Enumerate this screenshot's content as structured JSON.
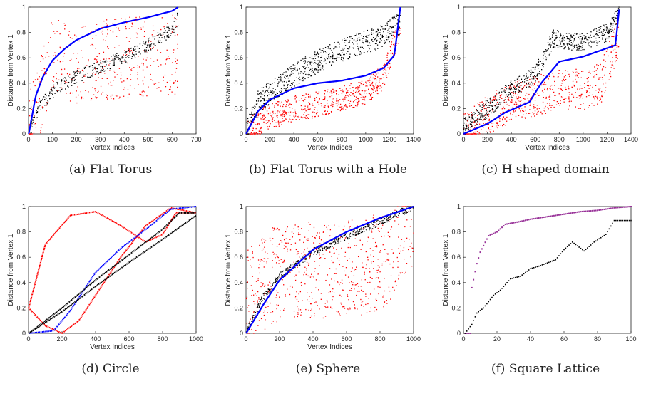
{
  "chart_data": [
    {
      "type": "scatter",
      "caption": "(a) Flat Torus",
      "xlabel": "Vertex Indices",
      "ylabel": "Distance from Vertex 1",
      "xlim": [
        0,
        700
      ],
      "ylim": [
        0,
        1
      ],
      "xticks": [
        0,
        100,
        200,
        300,
        400,
        500,
        600,
        700
      ],
      "yticks": [
        0,
        0.2,
        0.4,
        0.6,
        0.8,
        1
      ],
      "n": 625,
      "series": [
        {
          "color": "#0000ff",
          "style": "line",
          "points": [
            [
              1,
              0
            ],
            [
              30,
              0.3
            ],
            [
              60,
              0.45
            ],
            [
              100,
              0.58
            ],
            [
              150,
              0.67
            ],
            [
              200,
              0.74
            ],
            [
              300,
              0.83
            ],
            [
              400,
              0.88
            ],
            [
              500,
              0.92
            ],
            [
              600,
              0.97
            ],
            [
              625,
              1.0
            ]
          ]
        },
        {
          "color": "#000000",
          "style": "scatter",
          "points": [
            [
              1,
              0
            ],
            [
              50,
              0.22
            ],
            [
              100,
              0.33
            ],
            [
              150,
              0.4
            ],
            [
              200,
              0.45
            ],
            [
              300,
              0.53
            ],
            [
              400,
              0.61
            ],
            [
              500,
              0.7
            ],
            [
              600,
              0.82
            ],
            [
              625,
              0.92
            ]
          ],
          "spread": 0.05,
          "count": 380
        },
        {
          "color": "#ff0000",
          "style": "scatter",
          "points": [
            [
              1,
              0
            ],
            [
              100,
              0.6
            ],
            [
              200,
              0.55
            ],
            [
              300,
              0.58
            ],
            [
              400,
              0.6
            ],
            [
              500,
              0.62
            ],
            [
              625,
              0.62
            ]
          ],
          "spread": 0.32,
          "count": 430
        }
      ]
    },
    {
      "type": "scatter",
      "caption": "(b) Flat Torus with a Hole",
      "xlabel": "Vertex Indices",
      "ylabel": "Distance from Vertex 1",
      "xlim": [
        0,
        1400
      ],
      "ylim": [
        0,
        1
      ],
      "xticks": [
        0,
        200,
        400,
        600,
        800,
        1000,
        1200,
        1400
      ],
      "yticks": [
        0,
        0.2,
        0.4,
        0.6,
        0.8,
        1
      ],
      "n": 1290,
      "series": [
        {
          "color": "#ff0000",
          "style": "scatter",
          "points": [
            [
              1,
              0
            ],
            [
              150,
              0.12
            ],
            [
              400,
              0.2
            ],
            [
              700,
              0.25
            ],
            [
              1000,
              0.33
            ],
            [
              1150,
              0.45
            ],
            [
              1290,
              0.85
            ]
          ],
          "spread": 0.1,
          "count": 650
        },
        {
          "color": "#000000",
          "style": "scatter",
          "points": [
            [
              1,
              0
            ],
            [
              100,
              0.25
            ],
            [
              300,
              0.4
            ],
            [
              500,
              0.52
            ],
            [
              700,
              0.62
            ],
            [
              900,
              0.7
            ],
            [
              1100,
              0.75
            ],
            [
              1250,
              0.85
            ]
          ],
          "spread": 0.09,
          "count": 650
        },
        {
          "color": "#0000ff",
          "style": "line",
          "points": [
            [
              1,
              0
            ],
            [
              100,
              0.18
            ],
            [
              200,
              0.27
            ],
            [
              400,
              0.36
            ],
            [
              600,
              0.4
            ],
            [
              800,
              0.42
            ],
            [
              1000,
              0.46
            ],
            [
              1150,
              0.52
            ],
            [
              1240,
              0.62
            ],
            [
              1290,
              1.0
            ]
          ]
        }
      ]
    },
    {
      "type": "scatter",
      "caption": "(c) H shaped domain",
      "xlabel": "Vertex Indices",
      "ylabel": "Distance from Vertex 1",
      "xlim": [
        0,
        1400
      ],
      "ylim": [
        0,
        1
      ],
      "xticks": [
        0,
        200,
        400,
        600,
        800,
        1000,
        1200,
        1400
      ],
      "yticks": [
        0,
        0.2,
        0.4,
        0.6,
        0.8,
        1
      ],
      "n": 1300,
      "series": [
        {
          "color": "#ff0000",
          "style": "scatter",
          "points": [
            [
              1,
              0
            ],
            [
              200,
              0.15
            ],
            [
              400,
              0.25
            ],
            [
              600,
              0.3
            ],
            [
              800,
              0.35
            ],
            [
              1000,
              0.35
            ],
            [
              1150,
              0.4
            ],
            [
              1300,
              0.78
            ]
          ],
          "spread": 0.16,
          "count": 650
        },
        {
          "color": "#000000",
          "style": "scatter",
          "points": [
            [
              1,
              0.05
            ],
            [
              200,
              0.2
            ],
            [
              400,
              0.35
            ],
            [
              600,
              0.47
            ],
            [
              750,
              0.75
            ],
            [
              1000,
              0.72
            ],
            [
              1200,
              0.8
            ],
            [
              1300,
              0.95
            ]
          ],
          "spread": 0.07,
          "count": 650
        },
        {
          "color": "#0000ff",
          "style": "line",
          "points": [
            [
              1,
              0
            ],
            [
              200,
              0.08
            ],
            [
              350,
              0.17
            ],
            [
              550,
              0.25
            ],
            [
              650,
              0.4
            ],
            [
              800,
              0.57
            ],
            [
              1000,
              0.61
            ],
            [
              1150,
              0.66
            ],
            [
              1270,
              0.7
            ],
            [
              1300,
              0.98
            ]
          ]
        }
      ]
    },
    {
      "type": "scatter",
      "caption": "(d) Circle",
      "xlabel": "Vertex Indices",
      "ylabel": "Distance from Vertex 1",
      "xlim": [
        0,
        1000
      ],
      "ylim": [
        0,
        1
      ],
      "xticks": [
        0,
        200,
        400,
        600,
        800,
        1000
      ],
      "yticks": [
        0,
        0.2,
        0.4,
        0.6,
        0.8,
        1
      ],
      "n": 1000,
      "series": [
        {
          "color": "#ff0000",
          "style": "curve",
          "points": [
            [
              1,
              0.2
            ],
            [
              100,
              0.7
            ],
            [
              250,
              0.93
            ],
            [
              400,
              0.96
            ],
            [
              550,
              0.85
            ],
            [
              700,
              0.72
            ],
            [
              800,
              0.78
            ],
            [
              880,
              0.95
            ],
            [
              1000,
              0.95
            ]
          ]
        },
        {
          "color": "#ff0000",
          "style": "curve",
          "points": [
            [
              1,
              0.2
            ],
            [
              100,
              0.06
            ],
            [
              200,
              0.0
            ],
            [
              300,
              0.1
            ],
            [
              400,
              0.3
            ],
            [
              550,
              0.6
            ],
            [
              700,
              0.85
            ],
            [
              850,
              0.99
            ],
            [
              1000,
              0.95
            ]
          ]
        },
        {
          "color": "#0000ff",
          "style": "curve",
          "points": [
            [
              1,
              0
            ],
            [
              150,
              0.02
            ],
            [
              250,
              0.18
            ],
            [
              400,
              0.48
            ],
            [
              550,
              0.67
            ],
            [
              700,
              0.82
            ],
            [
              850,
              0.98
            ],
            [
              1000,
              1.0
            ]
          ]
        },
        {
          "color": "#000000",
          "style": "curve",
          "points": [
            [
              1,
              0
            ],
            [
              200,
              0.17
            ],
            [
              400,
              0.37
            ],
            [
              600,
              0.56
            ],
            [
              800,
              0.74
            ],
            [
              1000,
              0.93
            ]
          ]
        },
        {
          "color": "#000000",
          "style": "curve",
          "points": [
            [
              1,
              0
            ],
            [
              200,
              0.2
            ],
            [
              400,
              0.42
            ],
            [
              600,
              0.62
            ],
            [
              800,
              0.82
            ],
            [
              900,
              0.95
            ],
            [
              1000,
              0.95
            ]
          ]
        }
      ]
    },
    {
      "type": "scatter",
      "caption": "(e) Sphere",
      "xlabel": "Vertex Indices",
      "ylabel": "Distance from Vertex 1",
      "xlim": [
        0,
        1000
      ],
      "ylim": [
        0,
        1
      ],
      "xticks": [
        0,
        200,
        400,
        600,
        800,
        1000
      ],
      "yticks": [
        0,
        0.2,
        0.4,
        0.6,
        0.8,
        1
      ],
      "n": 1000,
      "series": [
        {
          "color": "#ff0000",
          "style": "scatter",
          "points": [
            [
              1,
              0.3
            ],
            [
              150,
              0.45
            ],
            [
              300,
              0.5
            ],
            [
              500,
              0.5
            ],
            [
              700,
              0.52
            ],
            [
              850,
              0.6
            ],
            [
              1000,
              0.88
            ]
          ],
          "spread": 0.38,
          "count": 700
        },
        {
          "color": "#000000",
          "style": "scatter",
          "points": [
            [
              1,
              0
            ],
            [
              100,
              0.28
            ],
            [
              200,
              0.45
            ],
            [
              400,
              0.64
            ],
            [
              600,
              0.77
            ],
            [
              800,
              0.88
            ],
            [
              1000,
              1.0
            ]
          ],
          "spread": 0.03,
          "count": 500
        },
        {
          "color": "#0000ff",
          "style": "line",
          "points": [
            [
              1,
              0
            ],
            [
              100,
              0.22
            ],
            [
              200,
              0.42
            ],
            [
              400,
              0.66
            ],
            [
              600,
              0.8
            ],
            [
              800,
              0.91
            ],
            [
              1000,
              1.0
            ]
          ]
        }
      ]
    },
    {
      "type": "scatter",
      "caption": "(f) Square Lattice",
      "xlabel": "",
      "ylabel": "Distance from Vertex 1",
      "xlim": [
        0,
        100
      ],
      "ylim": [
        0,
        1
      ],
      "xticks": [
        0,
        20,
        40,
        60,
        80,
        100
      ],
      "yticks": [
        0,
        0.2,
        0.4,
        0.6,
        0.8,
        1
      ],
      "n": 100,
      "steps_purple": [
        [
          1,
          0
        ],
        [
          4,
          0
        ],
        [
          5,
          0.36
        ],
        [
          8,
          0.55
        ],
        [
          10,
          0.64
        ],
        [
          15,
          0.77
        ],
        [
          20,
          0.8
        ],
        [
          25,
          0.86
        ],
        [
          33,
          0.88
        ],
        [
          40,
          0.9
        ],
        [
          50,
          0.92
        ],
        [
          60,
          0.94
        ],
        [
          70,
          0.96
        ],
        [
          80,
          0.97
        ],
        [
          90,
          0.99
        ],
        [
          100,
          1.0
        ]
      ],
      "steps_black": [
        [
          1,
          0
        ],
        [
          5,
          0.07
        ],
        [
          8,
          0.16
        ],
        [
          12,
          0.2
        ],
        [
          18,
          0.3
        ],
        [
          22,
          0.34
        ],
        [
          28,
          0.43
        ],
        [
          34,
          0.45
        ],
        [
          40,
          0.51
        ],
        [
          45,
          0.53
        ],
        [
          55,
          0.58
        ],
        [
          60,
          0.66
        ],
        [
          65,
          0.72
        ],
        [
          72,
          0.65
        ],
        [
          78,
          0.72
        ],
        [
          85,
          0.78
        ],
        [
          90,
          0.89
        ]
      ]
    }
  ]
}
